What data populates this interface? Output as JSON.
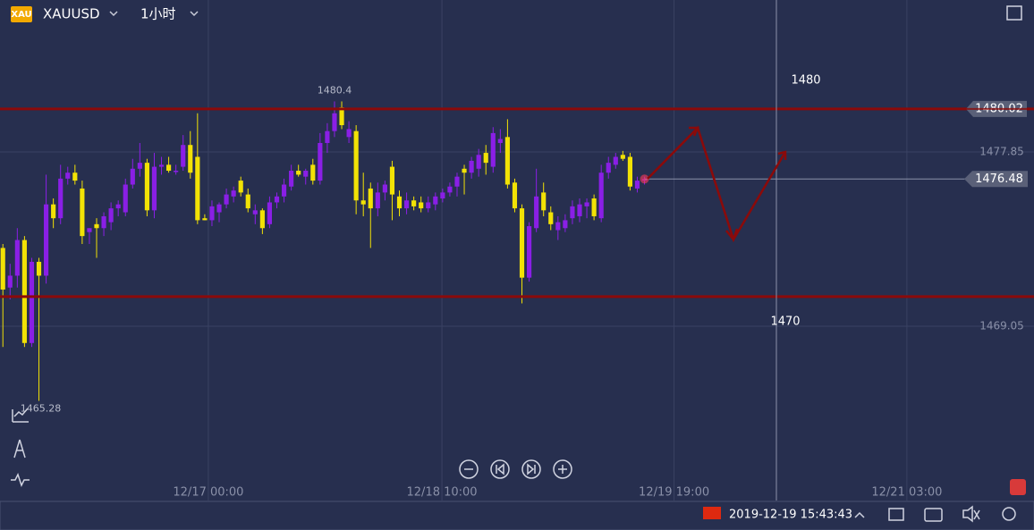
{
  "header": {
    "icon": "XAU",
    "symbol": "XAUUSD",
    "interval": "1小时"
  },
  "chart_data": {
    "type": "candlestick",
    "up_color": "#8a1fe6",
    "down_color": "#f2e205",
    "open": [
      1473.0,
      1471.0,
      1471.6,
      1473.4,
      1468.2,
      1472.3,
      1471.6,
      1475.2,
      1474.5,
      1476.5,
      1476.8,
      1476.0,
      1473.8,
      1474.2,
      1474.0,
      1474.3,
      1475.0,
      1474.8,
      1476.2,
      1477.0,
      1477.3,
      1474.9,
      1477.1,
      1477.2,
      1476.9,
      1477.1,
      1478.2,
      1477.6,
      1474.5,
      1474.4,
      1474.8,
      1475.2,
      1475.6,
      1476.4,
      1475.7,
      1474.7,
      1474.9,
      1474.2,
      1475.3,
      1475.6,
      1476.1,
      1476.9,
      1476.6,
      1477.2,
      1476.4,
      1478.3,
      1478.9,
      1480.1,
      1478.6,
      1478.9,
      1475.4,
      1476.0,
      1475.0,
      1475.8,
      1477.1,
      1475.6,
      1475.0,
      1475.4,
      1475.3,
      1475.0,
      1475.2,
      1475.5,
      1475.8,
      1476.1,
      1477.0,
      1476.8,
      1477.0,
      1477.8,
      1477.1,
      1478.3,
      1478.6,
      1476.3,
      1475.0,
      1471.5,
      1474.0,
      1475.8,
      1474.8,
      1473.9,
      1474.0,
      1474.5,
      1474.6,
      1475.1,
      1475.5,
      1474.5,
      1476.8,
      1477.2,
      1477.7,
      1477.6,
      1476.0,
      1476.4
    ],
    "high": [
      1473.2,
      1472.2,
      1474.0,
      1473.6,
      1472.5,
      1472.5,
      1476.7,
      1475.5,
      1477.2,
      1477.1,
      1477.2,
      1476.4,
      1474.0,
      1474.5,
      1474.8,
      1475.3,
      1475.4,
      1476.5,
      1477.5,
      1478.3,
      1477.5,
      1477.8,
      1477.6,
      1477.6,
      1477.2,
      1478.7,
      1478.9,
      1479.8,
      1474.7,
      1475.4,
      1475.3,
      1476.0,
      1476.1,
      1476.6,
      1476.0,
      1475.2,
      1475.0,
      1475.6,
      1475.8,
      1476.5,
      1477.2,
      1477.2,
      1477.0,
      1477.5,
      1478.8,
      1479.3,
      1480.4,
      1480.4,
      1479.4,
      1479.2,
      1476.8,
      1476.3,
      1476.3,
      1476.4,
      1477.4,
      1475.9,
      1475.8,
      1475.6,
      1475.6,
      1475.6,
      1475.8,
      1476.0,
      1476.3,
      1476.8,
      1477.2,
      1477.6,
      1478.0,
      1478.2,
      1479.1,
      1479.0,
      1479.5,
      1476.5,
      1475.2,
      1474.3,
      1477.0,
      1476.3,
      1475.1,
      1474.6,
      1474.7,
      1475.4,
      1475.5,
      1475.5,
      1475.7,
      1477.2,
      1477.6,
      1477.8,
      1477.9,
      1477.8,
      1476.6,
      1476.6
    ],
    "low": [
      1468.0,
      1470.4,
      1471.0,
      1468.0,
      1468.0,
      1465.28,
      1471.2,
      1474.0,
      1474.2,
      1476.2,
      1476.2,
      1473.2,
      1473.2,
      1472.5,
      1473.6,
      1473.9,
      1474.6,
      1474.6,
      1476.0,
      1476.6,
      1474.6,
      1474.5,
      1476.7,
      1476.8,
      1476.7,
      1476.9,
      1476.5,
      1474.2,
      1474.4,
      1474.1,
      1474.3,
      1475.0,
      1475.3,
      1475.6,
      1474.8,
      1474.2,
      1473.7,
      1474.0,
      1475.0,
      1475.3,
      1475.9,
      1476.6,
      1476.2,
      1476.2,
      1476.2,
      1477.8,
      1478.6,
      1479.0,
      1478.3,
      1474.7,
      1474.6,
      1473.0,
      1474.6,
      1475.4,
      1474.4,
      1474.6,
      1474.7,
      1474.9,
      1474.8,
      1474.8,
      1474.9,
      1475.3,
      1475.6,
      1475.6,
      1475.7,
      1476.5,
      1476.6,
      1476.7,
      1476.8,
      1477.8,
      1476.0,
      1474.8,
      1470.2,
      1471.3,
      1473.8,
      1474.6,
      1473.9,
      1473.4,
      1473.8,
      1474.2,
      1474.3,
      1474.5,
      1474.4,
      1474.3,
      1476.5,
      1477.0,
      1477.4,
      1475.9,
      1475.8,
      1476.2
    ],
    "close": [
      1470.9,
      1471.6,
      1473.4,
      1468.2,
      1472.3,
      1471.6,
      1475.2,
      1474.5,
      1476.5,
      1476.8,
      1476.4,
      1473.6,
      1474.0,
      1474.0,
      1474.6,
      1475.0,
      1475.2,
      1476.2,
      1477.0,
      1477.3,
      1474.9,
      1477.1,
      1477.2,
      1476.9,
      1476.9,
      1478.2,
      1476.8,
      1474.4,
      1474.4,
      1475.1,
      1475.2,
      1475.7,
      1475.9,
      1475.8,
      1475.0,
      1474.9,
      1474.0,
      1475.3,
      1475.6,
      1476.2,
      1476.9,
      1476.7,
      1476.9,
      1476.4,
      1478.3,
      1478.9,
      1479.8,
      1479.2,
      1479.0,
      1475.4,
      1475.2,
      1475.0,
      1475.8,
      1476.2,
      1475.7,
      1475.0,
      1475.4,
      1475.1,
      1475.0,
      1475.3,
      1475.6,
      1475.8,
      1476.1,
      1476.6,
      1476.8,
      1477.4,
      1477.7,
      1477.3,
      1478.8,
      1478.5,
      1476.2,
      1475.0,
      1471.5,
      1474.1,
      1475.6,
      1474.9,
      1474.2,
      1474.3,
      1474.4,
      1475.1,
      1475.2,
      1475.3,
      1474.6,
      1476.8,
      1477.3,
      1477.6,
      1477.5,
      1476.1,
      1476.4,
      1476.48
    ],
    "xlim": [
      -0.4,
      133.6
    ],
    "xticks": [
      {
        "value": 28.5,
        "label": "12/17 00:00"
      },
      {
        "value": 60.9,
        "label": "12/18 10:00"
      },
      {
        "value": 93.1,
        "label": "12/19 19:00"
      },
      {
        "value": 125.4,
        "label": "12/21 03:00"
      }
    ],
    "ylim": [
      1461.15,
      1485.52
    ],
    "yticks": [
      1477.85,
      1469.05
    ],
    "resistance_level": 1480.02,
    "support_level": 1470.54,
    "level_color": "#8b0a0a",
    "current_price": 1476.48,
    "high_label": 1480.4,
    "low_label": 1465.28,
    "annotations": [
      "1480",
      "1470"
    ]
  },
  "footer": {
    "timestamp": "2019-12-19 15:43:43"
  }
}
